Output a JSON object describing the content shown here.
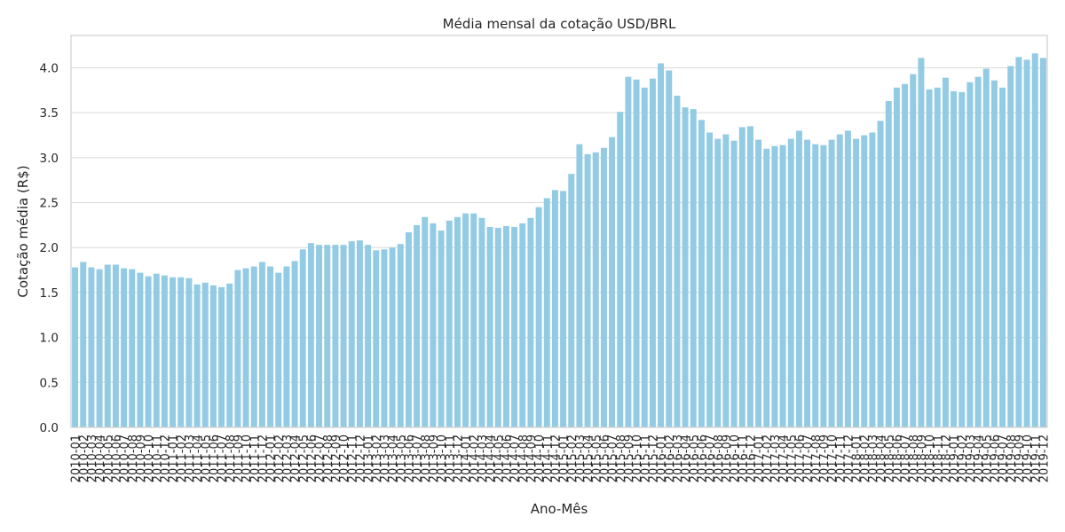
{
  "chart_data": {
    "type": "bar",
    "title": "Média mensal da cotação USD/BRL",
    "xlabel": "Ano-Mês",
    "ylabel": "Cotação média (R$)",
    "ylim": [
      0,
      4.36
    ],
    "yticks": [
      "0.0",
      "0.5",
      "1.0",
      "1.5",
      "2.0",
      "2.5",
      "3.0",
      "3.5",
      "4.0"
    ],
    "grid": "horizontal",
    "bar_color": "#92cbe3",
    "categories": [
      "2010-01",
      "2010-02",
      "2010-03",
      "2010-04",
      "2010-05",
      "2010-06",
      "2010-07",
      "2010-08",
      "2010-09",
      "2010-10",
      "2010-11",
      "2010-12",
      "2011-01",
      "2011-02",
      "2011-03",
      "2011-04",
      "2011-05",
      "2011-06",
      "2011-07",
      "2011-08",
      "2011-09",
      "2011-10",
      "2011-11",
      "2011-12",
      "2012-01",
      "2012-02",
      "2012-03",
      "2012-04",
      "2012-05",
      "2012-06",
      "2012-07",
      "2012-08",
      "2012-09",
      "2012-10",
      "2012-11",
      "2012-12",
      "2013-01",
      "2013-02",
      "2013-03",
      "2013-04",
      "2013-05",
      "2013-06",
      "2013-07",
      "2013-08",
      "2013-09",
      "2013-10",
      "2013-11",
      "2013-12",
      "2014-01",
      "2014-02",
      "2014-03",
      "2014-04",
      "2014-05",
      "2014-06",
      "2014-07",
      "2014-08",
      "2014-09",
      "2014-10",
      "2014-11",
      "2014-12",
      "2015-01",
      "2015-02",
      "2015-03",
      "2015-04",
      "2015-05",
      "2015-06",
      "2015-07",
      "2015-08",
      "2015-09",
      "2015-10",
      "2015-11",
      "2015-12",
      "2016-01",
      "2016-02",
      "2016-03",
      "2016-04",
      "2016-05",
      "2016-06",
      "2016-07",
      "2016-08",
      "2016-09",
      "2016-10",
      "2016-11",
      "2016-12",
      "2017-01",
      "2017-02",
      "2017-03",
      "2017-04",
      "2017-05",
      "2017-06",
      "2017-07",
      "2017-08",
      "2017-09",
      "2017-10",
      "2017-11",
      "2017-12",
      "2018-01",
      "2018-02",
      "2018-03",
      "2018-04",
      "2018-05",
      "2018-06",
      "2018-07",
      "2018-08",
      "2018-09",
      "2018-10",
      "2018-11",
      "2018-12",
      "2019-01",
      "2019-02",
      "2019-03",
      "2019-04",
      "2019-05",
      "2019-06",
      "2019-07",
      "2019-08",
      "2019-09",
      "2019-10",
      "2019-11",
      "2019-12"
    ],
    "values": [
      1.78,
      1.84,
      1.78,
      1.76,
      1.81,
      1.81,
      1.77,
      1.76,
      1.72,
      1.68,
      1.71,
      1.69,
      1.67,
      1.67,
      1.66,
      1.59,
      1.61,
      1.58,
      1.56,
      1.6,
      1.75,
      1.77,
      1.79,
      1.84,
      1.79,
      1.72,
      1.79,
      1.85,
      1.98,
      2.05,
      2.03,
      2.03,
      2.03,
      2.03,
      2.07,
      2.08,
      2.03,
      1.97,
      1.98,
      2.0,
      2.04,
      2.17,
      2.25,
      2.34,
      2.27,
      2.19,
      2.3,
      2.34,
      2.38,
      2.38,
      2.33,
      2.23,
      2.22,
      2.24,
      2.23,
      2.27,
      2.33,
      2.45,
      2.55,
      2.64,
      2.63,
      2.82,
      3.15,
      3.04,
      3.06,
      3.11,
      3.23,
      3.51,
      3.9,
      3.87,
      3.78,
      3.88,
      4.05,
      3.97,
      3.69,
      3.56,
      3.54,
      3.42,
      3.28,
      3.21,
      3.26,
      3.19,
      3.34,
      3.35,
      3.2,
      3.1,
      3.13,
      3.14,
      3.21,
      3.3,
      3.2,
      3.15,
      3.14,
      3.2,
      3.26,
      3.3,
      3.21,
      3.25,
      3.28,
      3.41,
      3.63,
      3.78,
      3.82,
      3.93,
      4.11,
      3.76,
      3.78,
      3.89,
      3.74,
      3.73,
      3.84,
      3.9,
      3.99,
      3.86,
      3.78,
      4.02,
      4.12,
      4.09,
      4.16,
      4.11
    ]
  }
}
